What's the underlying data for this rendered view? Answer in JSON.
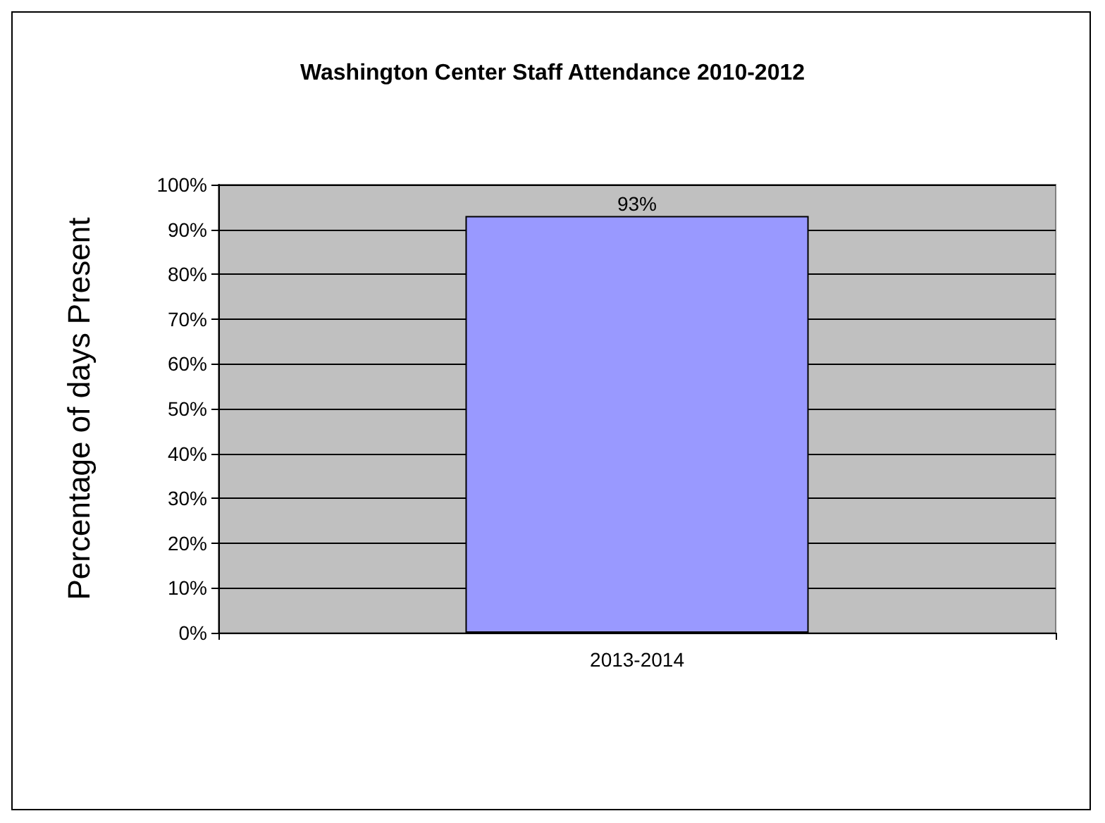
{
  "chart_data": {
    "type": "bar",
    "title": "Washington Center Staff Attendance 2010-2012",
    "ylabel": "Percentage of days Present",
    "categories": [
      "2013-2014"
    ],
    "values": [
      93
    ],
    "value_labels": [
      "93%"
    ],
    "color": "#9999ff",
    "ylim": [
      0,
      100
    ],
    "yticks": [
      {
        "value": 0,
        "label": "0%"
      },
      {
        "value": 10,
        "label": "10%"
      },
      {
        "value": 20,
        "label": "20%"
      },
      {
        "value": 30,
        "label": "30%"
      },
      {
        "value": 40,
        "label": "40%"
      },
      {
        "value": 50,
        "label": "50%"
      },
      {
        "value": 60,
        "label": "60%"
      },
      {
        "value": 70,
        "label": "70%"
      },
      {
        "value": 80,
        "label": "80%"
      },
      {
        "value": 90,
        "label": "90%"
      },
      {
        "value": 100,
        "label": "100%"
      }
    ],
    "grid": "y"
  }
}
